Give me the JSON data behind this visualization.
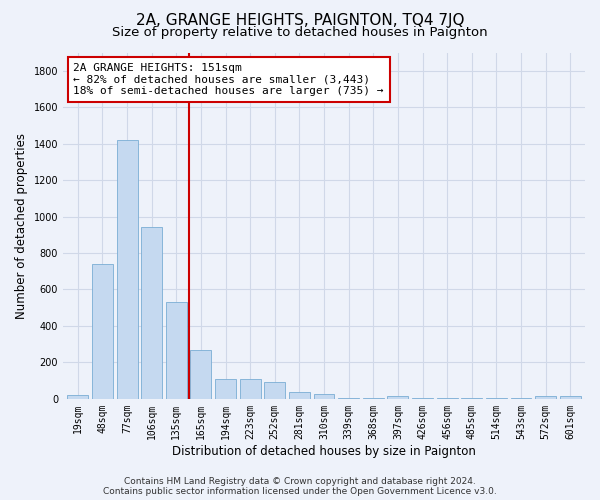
{
  "title": "2A, GRANGE HEIGHTS, PAIGNTON, TQ4 7JQ",
  "subtitle": "Size of property relative to detached houses in Paignton",
  "xlabel": "Distribution of detached houses by size in Paignton",
  "ylabel": "Number of detached properties",
  "footer_line1": "Contains HM Land Registry data © Crown copyright and database right 2024.",
  "footer_line2": "Contains public sector information licensed under the Open Government Licence v3.0.",
  "bar_labels": [
    "19sqm",
    "48sqm",
    "77sqm",
    "106sqm",
    "135sqm",
    "165sqm",
    "194sqm",
    "223sqm",
    "252sqm",
    "281sqm",
    "310sqm",
    "339sqm",
    "368sqm",
    "397sqm",
    "426sqm",
    "456sqm",
    "485sqm",
    "514sqm",
    "543sqm",
    "572sqm",
    "601sqm"
  ],
  "bar_values": [
    20,
    740,
    1420,
    940,
    530,
    270,
    110,
    110,
    90,
    40,
    25,
    5,
    5,
    15,
    5,
    5,
    5,
    5,
    5,
    15,
    15
  ],
  "bar_color": "#c5d9f0",
  "bar_edge_color": "#7aadd4",
  "vline_x": 4.5,
  "vline_color": "#cc0000",
  "annotation_text": "2A GRANGE HEIGHTS: 151sqm\n← 82% of detached houses are smaller (3,443)\n18% of semi-detached houses are larger (735) →",
  "annotation_box_color": "#ffffff",
  "annotation_box_edge": "#cc0000",
  "ylim": [
    0,
    1900
  ],
  "yticks": [
    0,
    200,
    400,
    600,
    800,
    1000,
    1200,
    1400,
    1600,
    1800
  ],
  "background_color": "#eef2fa",
  "plot_bg_color": "#eef2fa",
  "grid_color": "#d0d8e8",
  "title_fontsize": 11,
  "subtitle_fontsize": 9.5,
  "axis_label_fontsize": 8.5,
  "tick_fontsize": 7,
  "footer_fontsize": 6.5
}
